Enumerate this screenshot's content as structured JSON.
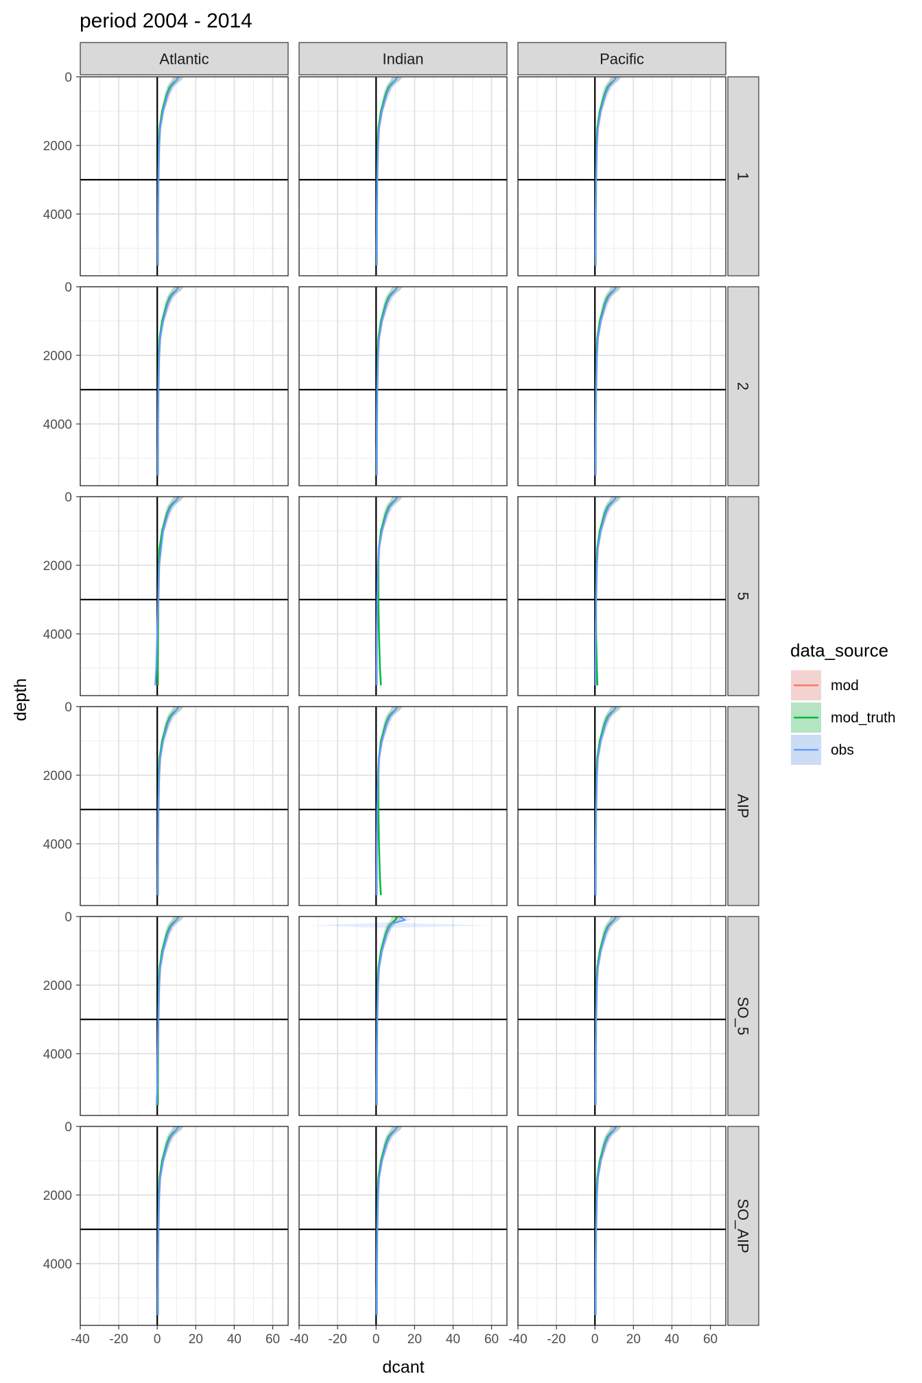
{
  "chart_data": {
    "type": "line",
    "title": "period 2004 - 2014",
    "xlabel": "dcant",
    "ylabel": "depth",
    "xlim": [
      -40,
      68
    ],
    "ylim": [
      0,
      5800
    ],
    "y_reversed": true,
    "x_ticks": [
      "-40",
      "-20",
      "0",
      "20",
      "40",
      "60"
    ],
    "y_ticks": [
      "0",
      "2000",
      "4000"
    ],
    "grid": true,
    "reference_lines": {
      "x": 0,
      "y": 3000
    },
    "columns": [
      "Atlantic",
      "Indian",
      "Pacific"
    ],
    "rows": [
      "1",
      "2",
      "5",
      "AIP",
      "SO_5",
      "SO_AIP"
    ],
    "legend": {
      "title": "data_source",
      "position": "right",
      "entries": [
        {
          "name": "mod",
          "color": "#F8766D"
        },
        {
          "name": "mod_truth",
          "color": "#00BA38"
        },
        {
          "name": "obs",
          "color": "#619CFF"
        }
      ]
    },
    "depth_levels": [
      0,
      100,
      200,
      300,
      500,
      700,
      1000,
      1500,
      2000,
      3000,
      4000,
      5000,
      5500
    ],
    "profiles": {
      "Atlantic": [
        {
          "mod": [
            11,
            10,
            8,
            7,
            5.5,
            4.5,
            3,
            1.5,
            1,
            0.6,
            0.4,
            0.3,
            0.3
          ],
          "mod_truth": [
            11,
            10,
            8,
            6.5,
            5,
            4,
            2.5,
            1.2,
            0.8,
            0.5,
            0.4,
            0.3,
            0.3
          ],
          "obs": [
            11,
            10,
            8.5,
            7,
            5.5,
            4.5,
            3,
            1.5,
            1,
            0.6,
            0.4,
            0.3,
            0.3
          ]
        },
        {
          "mod": [
            11,
            10,
            8,
            7,
            5.5,
            4.5,
            3,
            1.5,
            1,
            0.6,
            0.4,
            0.3,
            0.3
          ],
          "mod_truth": [
            11,
            10,
            8,
            6.5,
            5,
            4,
            2.5,
            1.2,
            0.8,
            0.5,
            0.4,
            0.3,
            0.3
          ],
          "obs": [
            11,
            10,
            8.5,
            7,
            5.5,
            4.5,
            3,
            1.5,
            1,
            0.6,
            0.4,
            0.3,
            0.3
          ]
        },
        {
          "mod": [
            11,
            10,
            8,
            7,
            5.5,
            4.5,
            3,
            1.5,
            1,
            0.6,
            0.4,
            0.3,
            0.3
          ],
          "mod_truth": [
            11,
            10,
            8,
            6.5,
            5,
            4,
            2.5,
            1.2,
            0.8,
            0.5,
            0.4,
            0.3,
            0.3
          ],
          "obs": [
            11,
            10,
            8.5,
            7,
            5.5,
            4.5,
            3,
            2,
            1,
            0.5,
            0,
            -0.5,
            -1
          ]
        },
        {
          "mod": [
            11,
            10,
            8,
            7,
            5.5,
            4.5,
            3,
            1.5,
            1,
            0.6,
            0.4,
            0.3,
            0.3
          ],
          "mod_truth": [
            11,
            10,
            8,
            6.5,
            5,
            4,
            2.5,
            1.2,
            0.8,
            0.5,
            0.4,
            0.3,
            0.3
          ],
          "obs": [
            11,
            10,
            8.5,
            7,
            5.5,
            4.5,
            3,
            1.5,
            1,
            0.6,
            0.4,
            0.3,
            0.3
          ]
        },
        {
          "mod": [
            11,
            10,
            8,
            7,
            5.5,
            4.5,
            3,
            1.5,
            1,
            0.6,
            0.4,
            0.3,
            0.3
          ],
          "mod_truth": [
            11,
            10,
            8,
            6.5,
            5,
            4,
            2.5,
            1.2,
            0.8,
            0.5,
            0.4,
            0.3,
            0.3
          ],
          "obs": [
            11,
            10,
            8.5,
            7,
            5.5,
            4.5,
            3,
            1.5,
            1,
            0.6,
            0.2,
            0,
            -0.3
          ]
        },
        {
          "mod": [
            11,
            10,
            8,
            7,
            5.5,
            4.5,
            3,
            1.5,
            1,
            0.6,
            0.4,
            0.3,
            0.3
          ],
          "mod_truth": [
            11,
            10,
            8,
            6.5,
            5,
            4,
            2.5,
            1.2,
            0.8,
            0.5,
            0.4,
            0.3,
            0.3
          ],
          "obs": [
            11,
            10,
            8.5,
            7,
            5.5,
            4.5,
            3,
            1.5,
            1,
            0.6,
            0.4,
            0.3,
            0.3
          ]
        }
      ],
      "Indian": [
        {
          "mod": [
            11,
            10,
            8,
            7,
            5.5,
            4.5,
            3,
            1.5,
            1,
            0.6,
            0.4,
            0.3,
            0.3
          ],
          "mod_truth": [
            11,
            10,
            8,
            6.5,
            5,
            4,
            2.5,
            1.2,
            0.8,
            0.5,
            0.4,
            0.3,
            0.3
          ],
          "obs": [
            11,
            10,
            8.5,
            7,
            5.5,
            4.5,
            3,
            1.5,
            1,
            0.6,
            0.4,
            0.3,
            0.3
          ]
        },
        {
          "mod": [
            11,
            10,
            8,
            7,
            5.5,
            4.5,
            3,
            1.5,
            1,
            0.6,
            0.4,
            0.3,
            0.3
          ],
          "mod_truth": [
            11,
            10,
            8,
            6.5,
            5,
            4,
            2.5,
            1.2,
            0.8,
            0.5,
            0.4,
            0.3,
            0.3
          ],
          "obs": [
            11,
            10,
            8.5,
            7,
            5.5,
            4.5,
            3,
            1.5,
            1,
            0.6,
            0.4,
            0.3,
            0.3
          ]
        },
        {
          "mod": [
            11,
            10,
            8,
            7,
            5.5,
            4.5,
            3,
            1.5,
            1,
            0.6,
            0.4,
            0.3,
            0.3
          ],
          "mod_truth": [
            11,
            10,
            8,
            6.5,
            5,
            4,
            2.5,
            1.5,
            1.2,
            1.2,
            1.5,
            2,
            2.5
          ],
          "obs": [
            11,
            10,
            8.5,
            7,
            5.5,
            4.5,
            3,
            1.5,
            1,
            0.6,
            0.4,
            0.3,
            0.3
          ]
        },
        {
          "mod": [
            11,
            10,
            8,
            7,
            5.5,
            4.5,
            3,
            1.5,
            1,
            0.6,
            0.4,
            0.3,
            0.3
          ],
          "mod_truth": [
            11,
            10,
            8,
            6.5,
            5,
            4,
            2.5,
            1.5,
            1.2,
            1.2,
            1.5,
            2,
            2.5
          ],
          "obs": [
            11,
            10,
            8.5,
            7,
            5.5,
            4.5,
            3,
            1.5,
            1,
            0.6,
            0.4,
            0.3,
            0.3
          ]
        },
        {
          "mod": [
            11,
            10,
            8,
            7,
            5.5,
            4.5,
            3,
            1.5,
            1,
            0.6,
            0.4,
            0.3,
            0.3
          ],
          "mod_truth": [
            11,
            10,
            8,
            6.5,
            5,
            4,
            2.5,
            1.2,
            0.8,
            0.5,
            0.4,
            0.3,
            0.3
          ],
          "obs": [
            12,
            15,
            8.5,
            7,
            5.5,
            4.5,
            3,
            1.5,
            1,
            0.6,
            0.4,
            0.3,
            0.3
          ]
        },
        {
          "mod": [
            11,
            10,
            8,
            7,
            5.5,
            4.5,
            3,
            1.5,
            1,
            0.6,
            0.4,
            0.3,
            0.3
          ],
          "mod_truth": [
            11,
            10,
            8,
            6.5,
            5,
            4,
            2.5,
            1.2,
            0.8,
            0.5,
            0.4,
            0.3,
            0.3
          ],
          "obs": [
            11,
            10,
            8.5,
            7,
            5.5,
            4.5,
            3,
            1.5,
            1,
            0.6,
            0.4,
            0.3,
            0.3
          ]
        }
      ],
      "Pacific": [
        {
          "mod": [
            11,
            10,
            8,
            7,
            5.5,
            4.5,
            3,
            1.5,
            1,
            0.6,
            0.4,
            0.3,
            0.3
          ],
          "mod_truth": [
            11,
            10,
            8,
            6.5,
            5,
            4,
            2.5,
            1.2,
            0.8,
            0.5,
            0.4,
            0.3,
            0.3
          ],
          "obs": [
            11,
            10,
            8.5,
            7,
            5.5,
            4.5,
            3,
            1.5,
            1,
            0.6,
            0.4,
            0.3,
            0.3
          ]
        },
        {
          "mod": [
            11,
            10,
            8,
            7,
            5.5,
            4.5,
            3,
            1.5,
            1,
            0.6,
            0.4,
            0.3,
            0.3
          ],
          "mod_truth": [
            11,
            10,
            8,
            6.5,
            5,
            4,
            2.5,
            1.2,
            0.8,
            0.5,
            0.4,
            0.3,
            0.3
          ],
          "obs": [
            11,
            10,
            8.5,
            7,
            5.5,
            4.5,
            3,
            1.5,
            1,
            0.6,
            0.4,
            0.3,
            0.3
          ]
        },
        {
          "mod": [
            11,
            10,
            8,
            7,
            5.5,
            4.5,
            3,
            1.5,
            1,
            0.6,
            0.4,
            0.3,
            0.3
          ],
          "mod_truth": [
            11,
            10,
            8,
            6.5,
            5,
            4,
            2.5,
            1.2,
            0.8,
            0.5,
            0.6,
            1,
            1.3
          ],
          "obs": [
            11,
            10,
            8.5,
            7,
            5.5,
            4.5,
            3,
            1.5,
            1,
            0.6,
            0.4,
            0.3,
            0.3
          ]
        },
        {
          "mod": [
            11,
            10,
            8,
            7,
            5.5,
            4.5,
            3,
            1.5,
            1,
            0.6,
            0.4,
            0.3,
            0.3
          ],
          "mod_truth": [
            11,
            10,
            8,
            6.5,
            5,
            4,
            2.5,
            1.2,
            0.8,
            0.5,
            0.4,
            0.3,
            0.3
          ],
          "obs": [
            11,
            10,
            8.5,
            7,
            5.5,
            4.5,
            3,
            1.5,
            1,
            0.6,
            0.4,
            0.3,
            0.3
          ]
        },
        {
          "mod": [
            11,
            10,
            8,
            7,
            5.5,
            4.5,
            3,
            1.5,
            1,
            0.6,
            0.4,
            0.3,
            0.3
          ],
          "mod_truth": [
            11,
            10,
            8,
            6.5,
            5,
            4,
            2.5,
            1.2,
            0.8,
            0.5,
            0.4,
            0.3,
            0.3
          ],
          "obs": [
            11,
            10,
            8.5,
            7,
            5.5,
            4.5,
            3,
            1.5,
            1,
            0.6,
            0.4,
            0.3,
            0.3
          ]
        },
        {
          "mod": [
            11,
            10,
            8,
            7,
            5.5,
            4.5,
            3,
            1.5,
            1,
            0.6,
            0.4,
            0.3,
            0.3
          ],
          "mod_truth": [
            11,
            10,
            8,
            6.5,
            5,
            4,
            2.5,
            1.2,
            0.8,
            0.5,
            0.4,
            0.3,
            0.3
          ],
          "obs": [
            11,
            10,
            8.5,
            7,
            5.5,
            4.5,
            3,
            1.5,
            1,
            0.6,
            0.4,
            0.3,
            0.3
          ]
        }
      ]
    }
  }
}
